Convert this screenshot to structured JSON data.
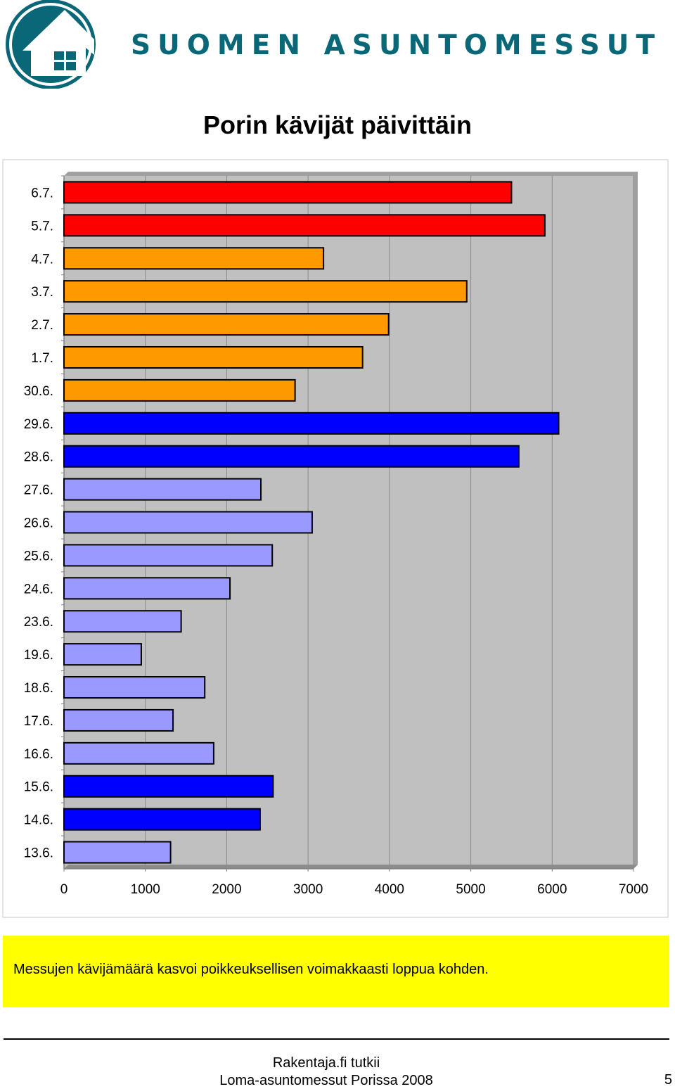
{
  "brand": {
    "name": "SUOMEN ASUNTOMESSUT"
  },
  "page_title": "Porin kävijät päivittäin",
  "chart_data": {
    "type": "bar",
    "orientation": "horizontal",
    "title": "",
    "xlabel": "",
    "ylabel": "",
    "xlim": [
      0,
      7000
    ],
    "x_ticks": [
      "0",
      "1000",
      "2000",
      "3000",
      "4000",
      "5000",
      "6000",
      "7000"
    ],
    "grid": true,
    "legend": "none",
    "categories": [
      "6.7.",
      "5.7.",
      "4.7.",
      "3.7.",
      "2.7.",
      "1.7.",
      "30.6.",
      "29.6.",
      "28.6.",
      "27.6.",
      "26.6.",
      "25.6.",
      "24.6.",
      "23.6.",
      "19.6.",
      "18.6.",
      "17.6.",
      "16.6.",
      "15.6.",
      "14.6.",
      "13.6."
    ],
    "values": [
      5500,
      5910,
      3190,
      4950,
      3990,
      3670,
      2840,
      6080,
      5590,
      2420,
      3050,
      2560,
      2040,
      1440,
      950,
      1730,
      1340,
      1840,
      2570,
      2410,
      1310
    ],
    "bar_colors": [
      "#ff0000",
      "#ff0000",
      "#ff9900",
      "#ff9900",
      "#ff9900",
      "#ff9900",
      "#ff9900",
      "#0000ff",
      "#0000ff",
      "#9999ff",
      "#9999ff",
      "#9999ff",
      "#9999ff",
      "#9999ff",
      "#9999ff",
      "#9999ff",
      "#9999ff",
      "#9999ff",
      "#0000ff",
      "#0000ff",
      "#9999ff"
    ],
    "plot_background": "#c0c0c0"
  },
  "callout": {
    "text": "Messujen kävijämäärä kasvoi poikkeuksellisen voimakkaasti loppua kohden."
  },
  "footer": {
    "line1": "Rakentaja.fi tutkii",
    "line2": "Loma-asuntomessut Porissa 2008",
    "page_number": "5"
  },
  "colors": {
    "brand": "#0a6777",
    "callout_bg": "#ffff00"
  }
}
